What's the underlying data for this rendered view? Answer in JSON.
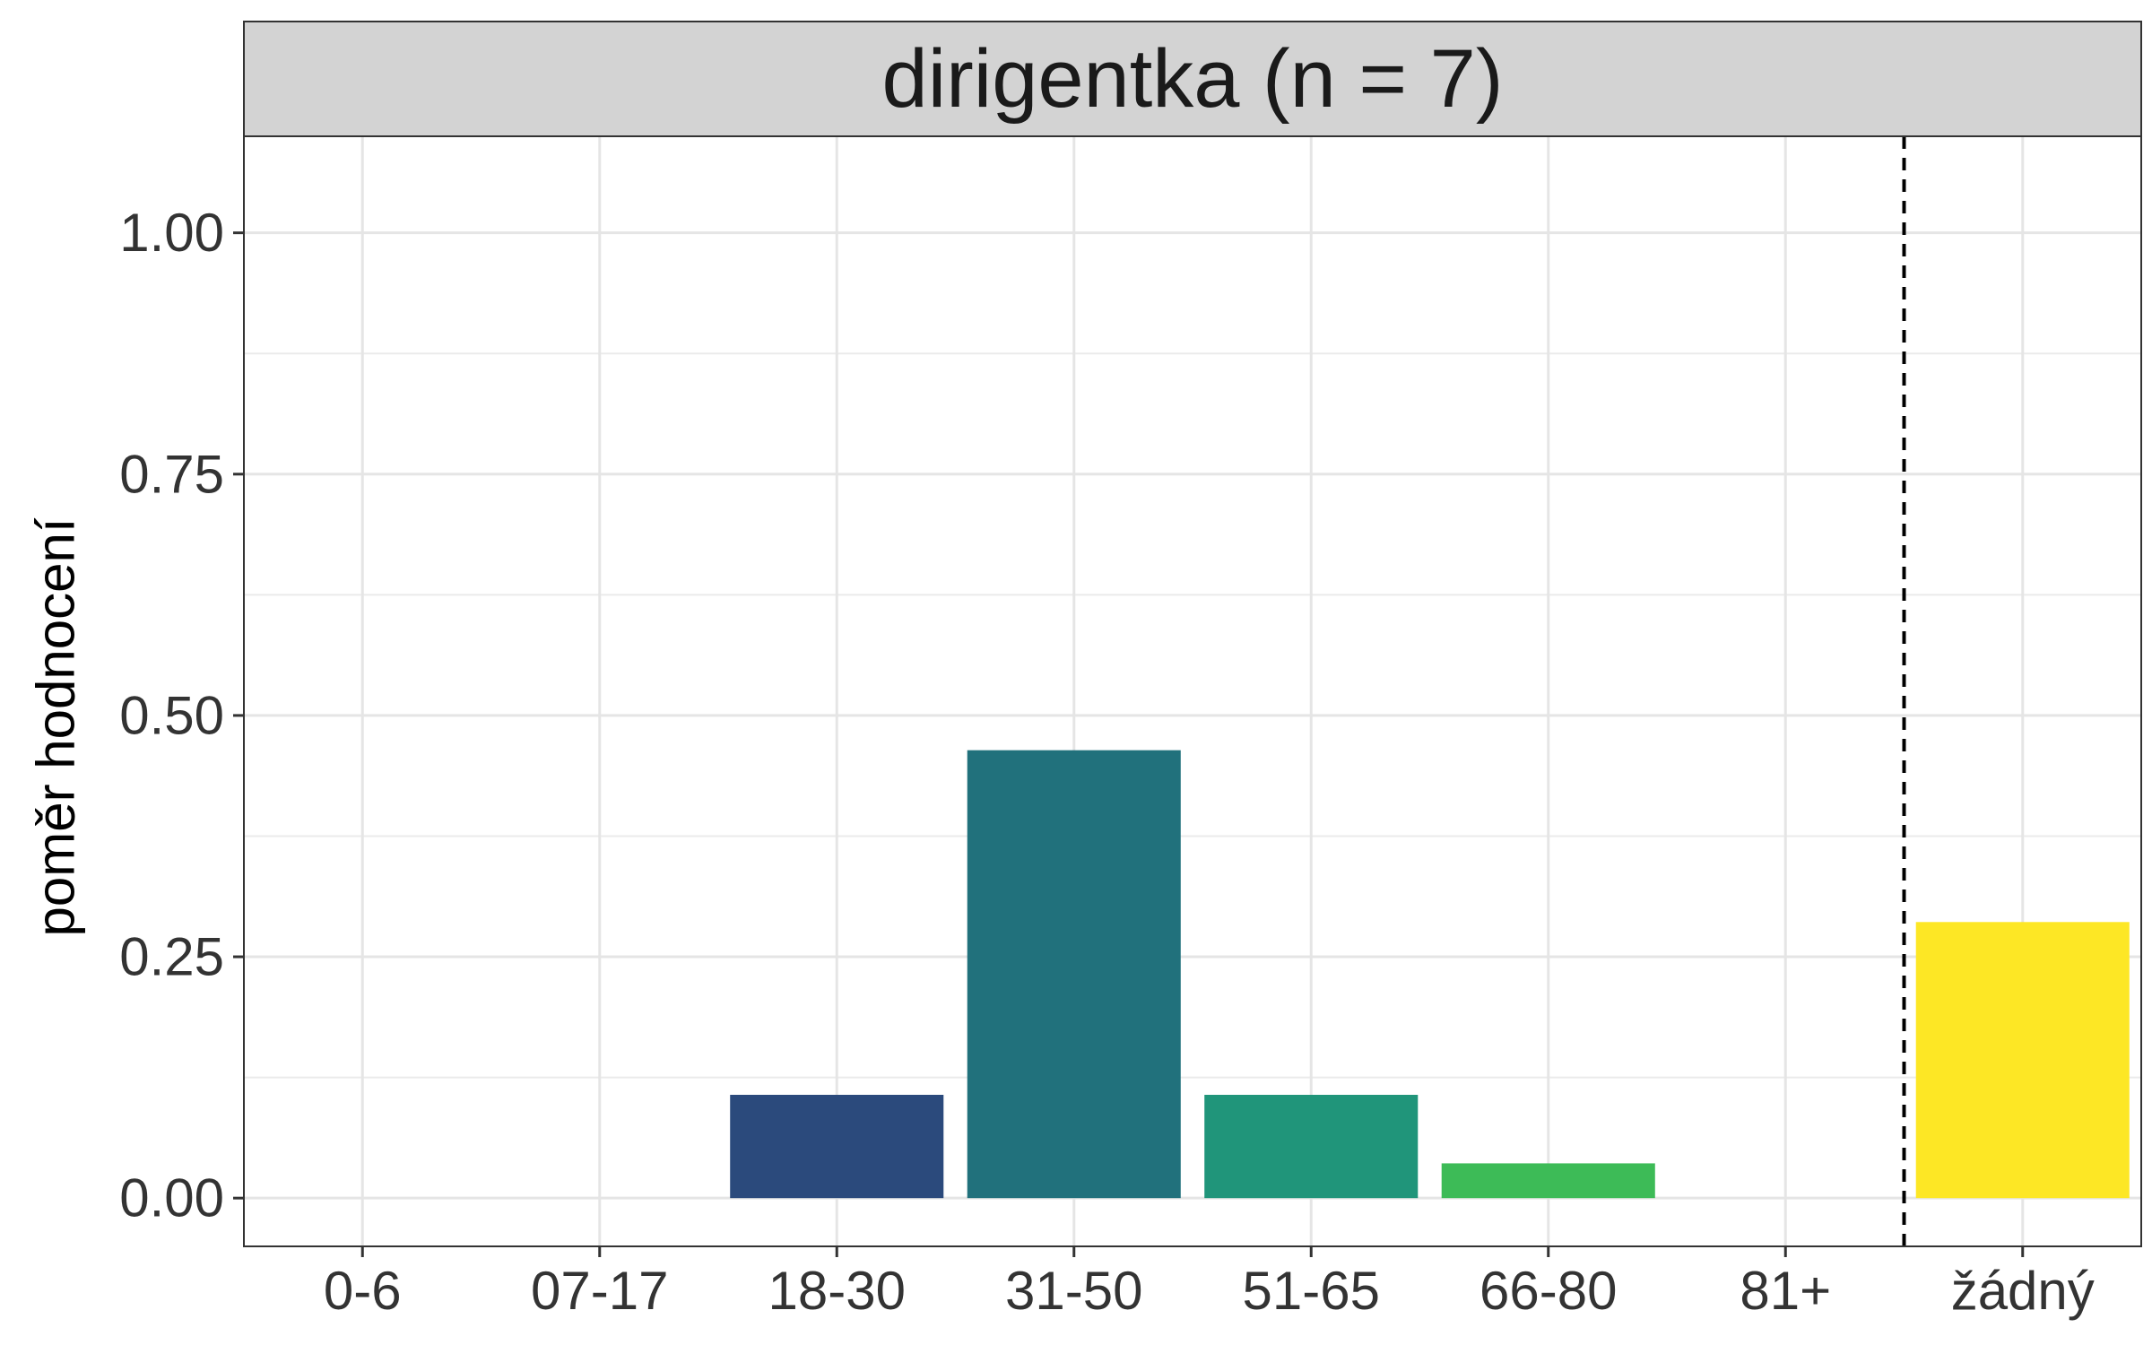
{
  "chart_data": {
    "type": "bar",
    "facet_title": "dirigentka (n = 7)",
    "ylabel": "poměr hodnocení",
    "xlabel": "",
    "categories": [
      "0-6",
      "07-17",
      "18-30",
      "31-50",
      "51-65",
      "66-80",
      "81+",
      "žádný"
    ],
    "values": [
      0,
      0,
      0.107,
      0.464,
      0.107,
      0.036,
      0,
      0.286
    ],
    "colors": [
      "#440154",
      "#46337E",
      "#2B4A7C",
      "#21717C",
      "#20957A",
      "#3DBB57",
      "#8FD744",
      "#FDE725"
    ],
    "ylim": [
      -0.05,
      1.1
    ],
    "yticks": [
      0,
      0.25,
      0.5,
      0.75,
      1.0
    ],
    "ytick_labels": [
      "0.00",
      "0.25",
      "0.50",
      "0.75",
      "1.00"
    ],
    "grid": true,
    "separator_after_category": "81+",
    "separator_style": "dashed"
  }
}
